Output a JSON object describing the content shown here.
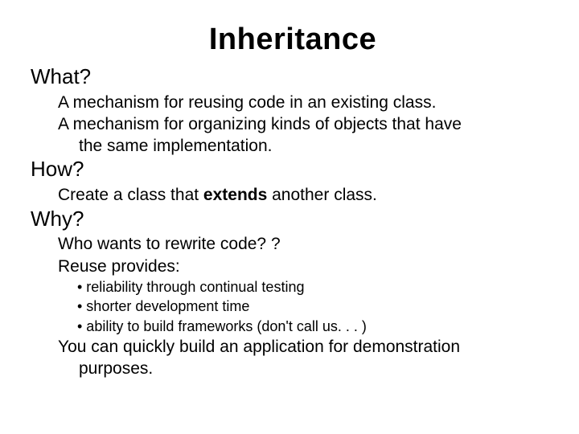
{
  "title": "Inheritance",
  "sections": {
    "what": {
      "heading": "What?",
      "lines": [
        "A mechanism for reusing code in an existing class.",
        "A mechanism for organizing kinds of objects that have",
        "the same implementation."
      ]
    },
    "how": {
      "heading": "How?",
      "line_prefix": "Create a class that ",
      "line_bold": "extends",
      "line_suffix": " another class."
    },
    "why": {
      "heading": "Why?",
      "lines": [
        "Who wants to rewrite code? ?",
        "Reuse provides:"
      ],
      "bullets": [
        "• reliability through continual testing",
        "• shorter development time",
        "• ability to build frameworks (don't call us. . . )"
      ],
      "closing": "You can quickly build an application for demonstration",
      "closing_cont": "purposes."
    }
  },
  "style": {
    "title_fontsize": 38,
    "heading_fontsize": 26,
    "body_fontsize": 21,
    "bullet_fontsize": 18,
    "text_color": "#000000",
    "background_color": "#ffffff",
    "font_family": "Arial"
  }
}
